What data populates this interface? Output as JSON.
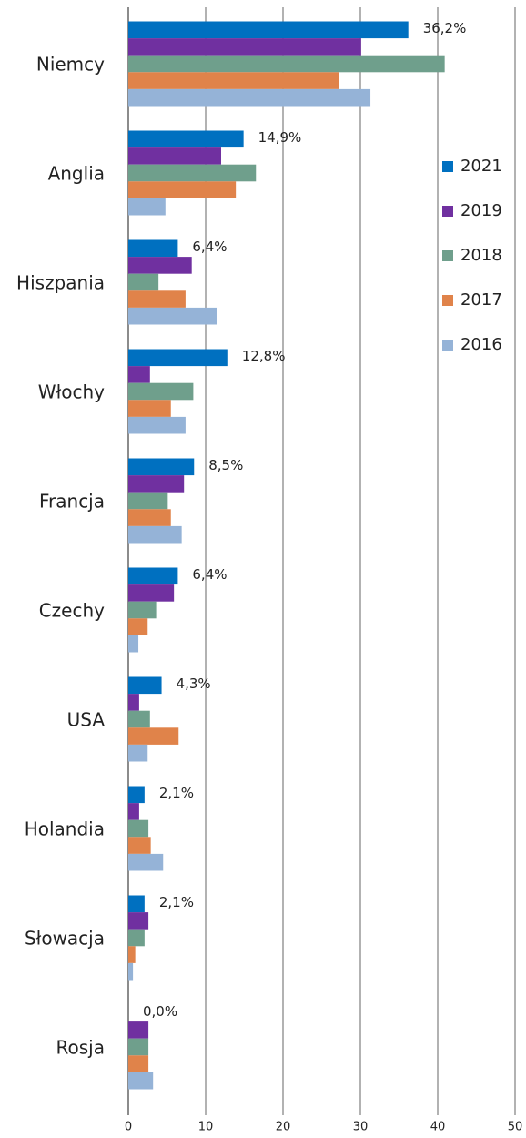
{
  "chart_data": {
    "type": "hbar",
    "categories": [
      "Niemcy",
      "Anglia",
      "Hiszpania",
      "Włochy",
      "Francja",
      "Czechy",
      "USA",
      "Holandia",
      "Słowacja",
      "Rosja"
    ],
    "series": [
      {
        "name": "2021",
        "color": "#0070c0",
        "values": [
          36.2,
          14.9,
          6.4,
          12.8,
          8.5,
          6.4,
          4.3,
          2.1,
          2.1,
          0.0
        ],
        "value_labels": [
          "36,2%",
          "14,9%",
          "6,4%",
          "12,8%",
          "8,5%",
          "6,4%",
          "4,3%",
          "2,1%",
          "2,1%",
          "0,0%"
        ]
      },
      {
        "name": "2019",
        "color": "#7030a0",
        "values": [
          30.1,
          12.0,
          8.2,
          2.8,
          7.2,
          5.9,
          1.4,
          1.4,
          2.6,
          2.6
        ]
      },
      {
        "name": "2018",
        "color": "#6f9f8c",
        "values": [
          40.9,
          16.5,
          3.9,
          8.4,
          5.1,
          3.6,
          2.8,
          2.6,
          2.1,
          2.6
        ]
      },
      {
        "name": "2017",
        "color": "#e0834a",
        "values": [
          27.2,
          13.9,
          7.4,
          5.5,
          5.5,
          2.5,
          6.5,
          2.9,
          0.9,
          2.6
        ]
      },
      {
        "name": "2016",
        "color": "#95b3d7",
        "values": [
          31.3,
          4.8,
          11.5,
          7.4,
          6.9,
          1.3,
          2.5,
          4.5,
          0.6,
          3.2
        ]
      }
    ],
    "xlim": [
      0,
      50
    ],
    "xticks": [
      0,
      10,
      20,
      30,
      40,
      50
    ],
    "grid": true,
    "legend": "right"
  }
}
